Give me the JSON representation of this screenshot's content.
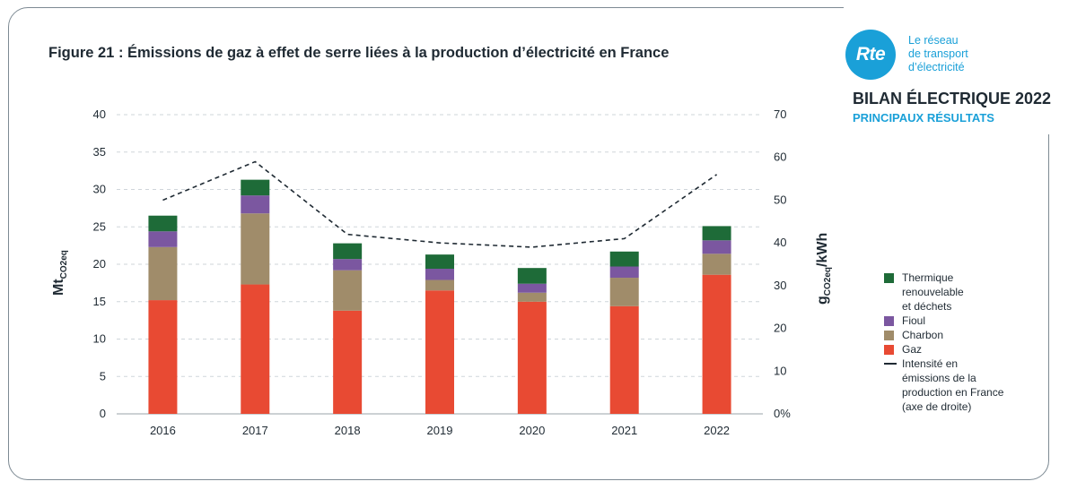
{
  "figure_title": "Figure 21 : Émissions de gaz à effet de serre liées à la production d’électricité en France",
  "logo": {
    "mark": "Rte",
    "caption_lines": [
      "Le réseau",
      "de transport",
      "d’électricité"
    ],
    "color": "#1aa0d8"
  },
  "report": {
    "title": "BILAN ÉLECTRIQUE 2022",
    "subtitle": "PRINCIPAUX RÉSULTATS"
  },
  "chart_data": {
    "type": "bar",
    "stacked": true,
    "categories": [
      "2016",
      "2017",
      "2018",
      "2019",
      "2020",
      "2021",
      "2022"
    ],
    "ylabel": "Mt",
    "ylabel_sub": "CO2eq",
    "ylim": [
      0,
      40
    ],
    "yticks": [
      "0",
      "5",
      "10",
      "15",
      "20",
      "25",
      "30",
      "35",
      "40"
    ],
    "y2label": "g",
    "y2label_sub": "CO2eq",
    "y2label_suffix": "/kWh",
    "y2lim": [
      0,
      70
    ],
    "y2ticks": [
      "0%",
      "10",
      "20",
      "30",
      "40",
      "50",
      "60",
      "70"
    ],
    "grid": true,
    "legend_position": "right",
    "series": [
      {
        "name": "Gaz",
        "color": "#e84a33",
        "values": [
          15.2,
          17.3,
          13.8,
          16.5,
          15.0,
          14.4,
          18.6
        ]
      },
      {
        "name": "Charbon",
        "color": "#a08c6a",
        "values": [
          7.1,
          9.5,
          5.4,
          1.4,
          1.2,
          3.8,
          2.8
        ]
      },
      {
        "name": "Fioul",
        "color": "#7b57a0",
        "values": [
          2.1,
          2.4,
          1.5,
          1.5,
          1.2,
          1.5,
          1.8
        ]
      },
      {
        "name": "Thermique renouvelable et déchets",
        "color": "#1e6b38",
        "values": [
          2.1,
          2.1,
          2.1,
          1.9,
          2.1,
          2.0,
          1.9
        ]
      }
    ],
    "line_series": {
      "name": "Intensité en émissions de la production en France (axe de droite)",
      "axis": "right",
      "style": "dashed",
      "color": "#1f2a33",
      "values": [
        50,
        59,
        42,
        40,
        39,
        41,
        56
      ]
    }
  },
  "legend": [
    {
      "lines": [
        "Thermique",
        "renouvelable",
        "et déchets"
      ],
      "color": "#1e6b38",
      "kind": "box"
    },
    {
      "lines": [
        "Fioul"
      ],
      "color": "#7b57a0",
      "kind": "box"
    },
    {
      "lines": [
        "Charbon"
      ],
      "color": "#a08c6a",
      "kind": "box"
    },
    {
      "lines": [
        "Gaz"
      ],
      "color": "#e84a33",
      "kind": "box"
    },
    {
      "lines": [
        "Intensité en",
        "émissions de la",
        "production en France",
        "(axe de droite)"
      ],
      "color": "#1f2a33",
      "kind": "line"
    }
  ]
}
